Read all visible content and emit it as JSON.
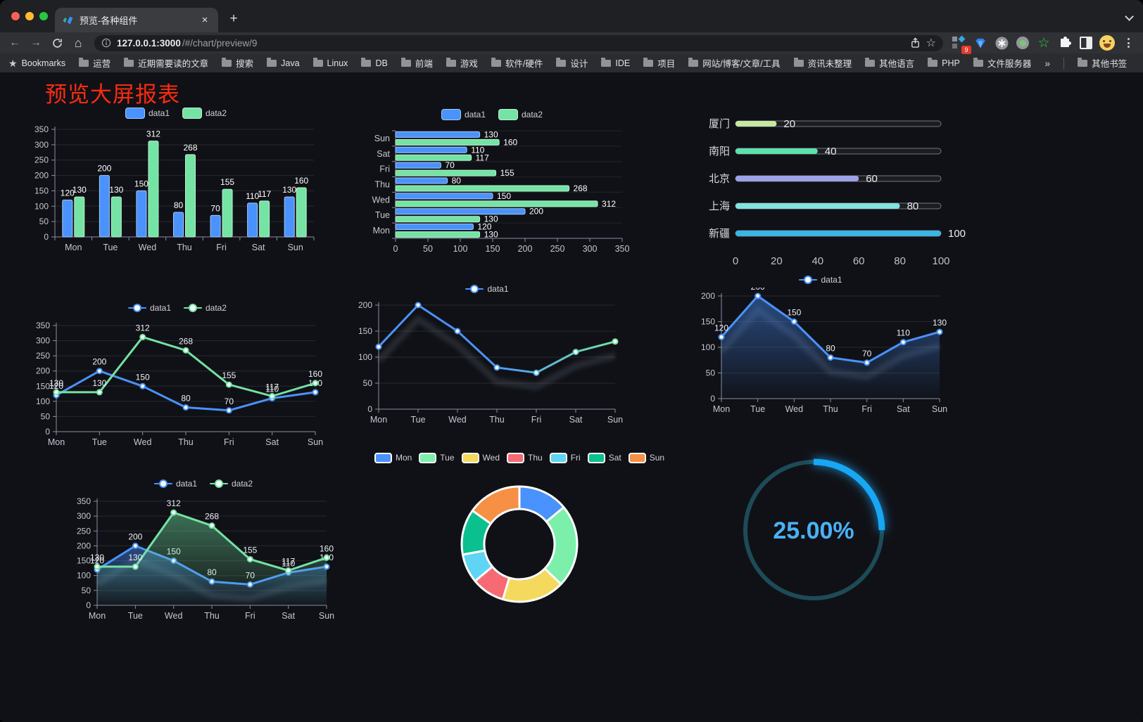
{
  "browser": {
    "tab": {
      "title": "预览-各种组件",
      "close_icon": "×"
    },
    "new_tab_icon": "+",
    "nav": {
      "back_icon": "←",
      "forward_icon": "→",
      "home_icon": "⌂"
    },
    "url": {
      "host": "127.0.0.1:3000",
      "path": "/#/chart/preview/9"
    },
    "star_icon": "☆",
    "extensions_badge": "9",
    "bookmarks": {
      "root_label": "Bookmarks",
      "root_icon": "★",
      "items": [
        "运营",
        "近期需要读的文章",
        "搜索",
        "Java",
        "Linux",
        "DB",
        "前端",
        "游戏",
        "软件/硬件",
        "设计",
        "IDE",
        "项目",
        "网站/博客/文章/工具",
        "资讯未整理",
        "其他语言",
        "PHP",
        "文件服务器"
      ],
      "overflow_icon": "»",
      "other_label": "其他书签"
    }
  },
  "page": {
    "title": "预览大屏报表",
    "title_color": "#fb2c0e",
    "background": "#101116"
  },
  "chart_data": [
    {
      "id": "bar",
      "type": "bar",
      "categories": [
        "Mon",
        "Tue",
        "Wed",
        "Thu",
        "Fri",
        "Sat",
        "Sun"
      ],
      "series": [
        {
          "name": "data1",
          "color": "#4992ff",
          "values": [
            120,
            200,
            150,
            80,
            70,
            110,
            130
          ]
        },
        {
          "name": "data2",
          "color": "#74e3a4",
          "values": [
            130,
            130,
            312,
            268,
            155,
            117,
            160
          ]
        }
      ],
      "ylim": [
        0,
        350
      ],
      "ystep": 50,
      "labels": true,
      "legend_position": "top"
    },
    {
      "id": "hbar",
      "type": "bar-horizontal",
      "categories": [
        "Mon",
        "Tue",
        "Wed",
        "Thu",
        "Fri",
        "Sat",
        "Sun"
      ],
      "series": [
        {
          "name": "data1",
          "color": "#4992ff",
          "values": [
            120,
            200,
            150,
            80,
            70,
            110,
            130
          ]
        },
        {
          "name": "data2",
          "color": "#74e3a4",
          "values": [
            130,
            130,
            312,
            268,
            155,
            117,
            160
          ]
        }
      ],
      "xlim": [
        0,
        350
      ],
      "xstep": 50,
      "labels": true,
      "legend_position": "top"
    },
    {
      "id": "progress",
      "type": "progress-bar",
      "xlim": [
        0,
        100
      ],
      "xticks": [
        0,
        20,
        40,
        60,
        80,
        100
      ],
      "rows": [
        {
          "label": "厦门",
          "value": 20,
          "color": "#c6e8a0"
        },
        {
          "label": "南阳",
          "value": 40,
          "color": "#5ce0ae"
        },
        {
          "label": "北京",
          "value": 60,
          "color": "#9ba2e6"
        },
        {
          "label": "上海",
          "value": 80,
          "color": "#83e1de"
        },
        {
          "label": "新疆",
          "value": 100,
          "color": "#3ab5e5"
        }
      ]
    },
    {
      "id": "line2",
      "type": "line",
      "categories": [
        "Mon",
        "Tue",
        "Wed",
        "Thu",
        "Fri",
        "Sat",
        "Sun"
      ],
      "series": [
        {
          "name": "data1",
          "color": "#4992ff",
          "values": [
            120,
            200,
            150,
            80,
            70,
            110,
            130
          ]
        },
        {
          "name": "data2",
          "color": "#74e3a4",
          "values": [
            130,
            130,
            312,
            268,
            155,
            117,
            160
          ]
        }
      ],
      "ylim": [
        0,
        350
      ],
      "ystep": 50,
      "labels": true,
      "shadow": false
    },
    {
      "id": "lineGradient",
      "type": "line",
      "categories": [
        "Mon",
        "Tue",
        "Wed",
        "Thu",
        "Fri",
        "Sat",
        "Sun"
      ],
      "series": [
        {
          "name": "data1",
          "gradient": [
            "#4992ff",
            "#74e3a4"
          ],
          "values": [
            120,
            200,
            150,
            80,
            70,
            110,
            130
          ]
        }
      ],
      "ylim": [
        0,
        200
      ],
      "ystep": 50,
      "labels": false,
      "shadow": true
    },
    {
      "id": "area1",
      "type": "area",
      "categories": [
        "Mon",
        "Tue",
        "Wed",
        "Thu",
        "Fri",
        "Sat",
        "Sun"
      ],
      "series": [
        {
          "name": "data1",
          "color": "#4992ff",
          "values": [
            120,
            200,
            150,
            80,
            70,
            110,
            130
          ]
        }
      ],
      "ylim": [
        0,
        200
      ],
      "ystep": 50,
      "labels": true,
      "shadow": true
    },
    {
      "id": "area2",
      "type": "area",
      "categories": [
        "Mon",
        "Tue",
        "Wed",
        "Thu",
        "Fri",
        "Sat",
        "Sun"
      ],
      "series": [
        {
          "name": "data1",
          "color": "#4992ff",
          "values": [
            120,
            200,
            150,
            80,
            70,
            110,
            130
          ]
        },
        {
          "name": "data2",
          "color": "#74e3a4",
          "values": [
            130,
            130,
            312,
            268,
            155,
            117,
            160
          ]
        }
      ],
      "ylim": [
        0,
        350
      ],
      "ystep": 50,
      "labels": true,
      "shadow": true
    },
    {
      "id": "donut",
      "type": "pie",
      "items": [
        {
          "label": "Mon",
          "value": 120,
          "color": "#4992ff"
        },
        {
          "label": "Tue",
          "value": 200,
          "color": "#7cf0ab"
        },
        {
          "label": "Wed",
          "value": 150,
          "color": "#f5d95f"
        },
        {
          "label": "Thu",
          "value": 80,
          "color": "#f76a74"
        },
        {
          "label": "Fri",
          "value": 70,
          "color": "#5fd4f5"
        },
        {
          "label": "Sat",
          "value": 110,
          "color": "#0ac08e"
        },
        {
          "label": "Sun",
          "value": 130,
          "color": "#f78f45"
        }
      ]
    },
    {
      "id": "gauge",
      "type": "gauge",
      "value": 25,
      "label": "25.00%",
      "color": "#17a7f3",
      "track_color": "#1d4b58",
      "text_color": "#49b1f7"
    }
  ]
}
